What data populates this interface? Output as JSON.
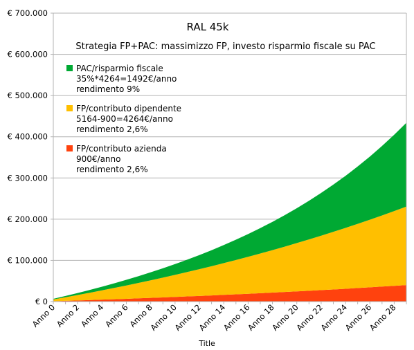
{
  "chart_data": {
    "type": "area",
    "stacked": true,
    "title": "RAL 45k",
    "subtitle": "Strategia FP+PAC: massimizzo FP, investo risparmio fiscale su PAC",
    "xlabel": "Title",
    "ylabel": "",
    "ylim": [
      0,
      700000
    ],
    "yticks": [
      "€ 0",
      "€ 100.000",
      "€ 200.000",
      "€ 300.000",
      "€ 400.000",
      "€ 500.000",
      "€ 600.000",
      "€ 700.000"
    ],
    "ytick_values": [
      0,
      100000,
      200000,
      300000,
      400000,
      500000,
      600000,
      700000
    ],
    "categories": [
      "Anno 0",
      "Anno 1",
      "Anno 2",
      "Anno 3",
      "Anno 4",
      "Anno 5",
      "Anno 6",
      "Anno 7",
      "Anno 8",
      "Anno 9",
      "Anno 10",
      "Anno 11",
      "Anno 12",
      "Anno 13",
      "Anno 14",
      "Anno 15",
      "Anno 16",
      "Anno 17",
      "Anno 18",
      "Anno 19",
      "Anno 20",
      "Anno 21",
      "Anno 22",
      "Anno 23",
      "Anno 24",
      "Anno 25",
      "Anno 26",
      "Anno 27",
      "Anno 28",
      "Anno 29"
    ],
    "xtick_labels": [
      "Anno 0",
      "Anno 2",
      "Anno 4",
      "Anno 6",
      "Anno 8",
      "Anno 10",
      "Anno 12",
      "Anno 14",
      "Anno 16",
      "Anno 18",
      "Anno 20",
      "Anno 22",
      "Anno 24",
      "Anno 26",
      "Anno 28"
    ],
    "grid": true,
    "legend_position": "top-left",
    "series": [
      {
        "name": "FP/contributo azienda",
        "legend_lines": [
          "FP/contributo azienda",
          "900€/anno",
          "rendimento 2,6%"
        ],
        "color": "#ff420e",
        "values": [
          900,
          1823,
          2771,
          3743,
          4741,
          5765,
          6815,
          7892,
          8998,
          10132,
          11296,
          12489,
          13714,
          14970,
          16259,
          17582,
          18939,
          20331,
          21760,
          23225,
          24729,
          26272,
          27856,
          29480,
          31147,
          32857,
          34612,
          36413,
          38260,
          40155
        ]
      },
      {
        "name": "FP/contributo dipendente",
        "legend_lines": [
          "FP/contributo dipendente",
          "5164-900=4264€/anno",
          "rendimento 2,6%"
        ],
        "color": "#ffbf00",
        "values": [
          4264,
          8639,
          13127,
          17733,
          22460,
          27309,
          32285,
          37391,
          42630,
          48005,
          53520,
          59180,
          64987,
          70946,
          77060,
          83333,
          89770,
          96375,
          103151,
          110104,
          117237,
          124557,
          132067,
          139772,
          147677,
          155789,
          164111,
          172651,
          181413,
          190403
        ]
      },
      {
        "name": "PAC/risparmio fiscale",
        "legend_lines": [
          "PAC/risparmio fiscale",
          "35%*4264=1492€/anno",
          "rendimento 9%"
        ],
        "color": "#00a933",
        "values": [
          1492,
          3118,
          4891,
          6823,
          8929,
          11225,
          13727,
          16454,
          19427,
          22667,
          26199,
          30049,
          34245,
          38819,
          43805,
          49239,
          55162,
          61618,
          68656,
          76327,
          84688,
          93802,
          103736,
          114564,
          126367,
          139232,
          153255,
          168539,
          185198,
          203358
        ]
      }
    ]
  }
}
